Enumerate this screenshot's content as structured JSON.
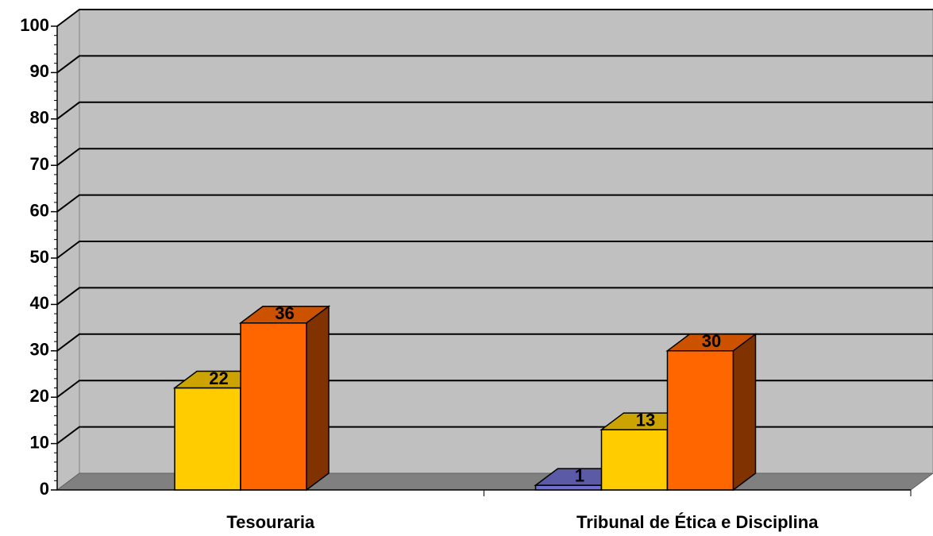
{
  "chart_data": {
    "type": "bar3d",
    "categories": [
      "Tesouraria",
      "Tribunal de Ética e Disciplina"
    ],
    "series": [
      {
        "color": "#7070d0",
        "values": [
          null,
          1
        ]
      },
      {
        "color": "#ffcc00",
        "values": [
          22,
          13
        ]
      },
      {
        "color": "#ff6600",
        "values": [
          36,
          30
        ]
      }
    ],
    "ylim": [
      0,
      100
    ],
    "yticks": [
      0,
      10,
      20,
      30,
      40,
      50,
      60,
      70,
      80,
      90,
      100
    ],
    "grid": true
  }
}
